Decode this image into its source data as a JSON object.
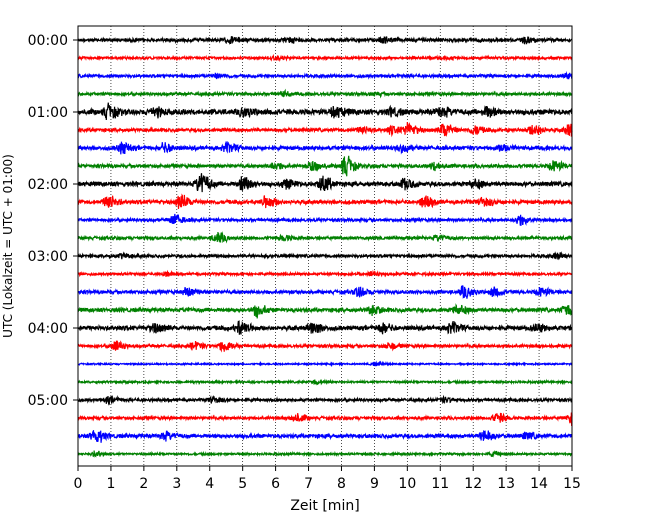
{
  "chart_data": {
    "type": "line",
    "title": "",
    "xlabel": "Zeit  [min]",
    "ylabel": "UTC (Lokalzeit = UTC + 01:00)",
    "xlim": [
      0,
      15
    ],
    "x_ticks": [
      "0",
      "1",
      "2",
      "3",
      "4",
      "5",
      "6",
      "7",
      "8",
      "9",
      "10",
      "11",
      "12",
      "13",
      "14",
      "15"
    ],
    "y_ticks": [
      "00:00",
      "01:00",
      "02:00",
      "03:00",
      "04:00",
      "05:00"
    ],
    "trace_interval_minutes": 15,
    "trace_colors": [
      "#000000",
      "#ff0000",
      "#0000ff",
      "#008000"
    ],
    "grid": "vertical-dotted",
    "series": [
      {
        "start": "00:00",
        "color": "#000000",
        "level": 0.35,
        "bursts": [
          [
            4.6,
            0.5
          ],
          [
            6.4,
            0.4
          ],
          [
            9.2,
            0.5
          ],
          [
            13.6,
            0.5
          ]
        ]
      },
      {
        "start": "00:15",
        "color": "#ff0000",
        "level": 0.25,
        "bursts": [
          [
            6.0,
            0.3
          ],
          [
            11.0,
            0.3
          ]
        ]
      },
      {
        "start": "00:30",
        "color": "#0000ff",
        "level": 0.3,
        "bursts": [
          [
            4.2,
            0.4
          ],
          [
            14.8,
            0.4
          ]
        ]
      },
      {
        "start": "00:45",
        "color": "#008000",
        "level": 0.3,
        "bursts": [
          [
            6.2,
            0.4
          ],
          [
            9.0,
            0.3
          ]
        ]
      },
      {
        "start": "01:00",
        "color": "#000000",
        "level": 0.55,
        "bursts": [
          [
            0.9,
            1.2
          ],
          [
            2.3,
            0.8
          ],
          [
            5.0,
            0.8
          ],
          [
            7.8,
            0.9
          ],
          [
            9.5,
            0.6
          ],
          [
            11.0,
            0.8
          ],
          [
            12.4,
            0.8
          ]
        ]
      },
      {
        "start": "01:15",
        "color": "#ff0000",
        "level": 0.35,
        "bursts": [
          [
            8.6,
            0.6
          ],
          [
            9.5,
            0.7
          ],
          [
            10.0,
            1.3
          ],
          [
            11.1,
            1.4
          ],
          [
            12.0,
            0.8
          ],
          [
            13.8,
            1.1
          ],
          [
            14.9,
            1.2
          ]
        ]
      },
      {
        "start": "01:30",
        "color": "#0000ff",
        "level": 0.4,
        "bursts": [
          [
            1.3,
            1.0
          ],
          [
            2.6,
            0.8
          ],
          [
            4.5,
            0.8
          ],
          [
            9.8,
            0.6
          ],
          [
            12.8,
            0.7
          ]
        ]
      },
      {
        "start": "01:45",
        "color": "#008000",
        "level": 0.35,
        "bursts": [
          [
            5.9,
            0.6
          ],
          [
            7.1,
            0.9
          ],
          [
            8.1,
            1.8
          ],
          [
            10.8,
            0.7
          ],
          [
            14.4,
            1.0
          ]
        ]
      },
      {
        "start": "02:00",
        "color": "#000000",
        "level": 0.45,
        "bursts": [
          [
            3.7,
            2.0
          ],
          [
            5.0,
            1.5
          ],
          [
            6.3,
            0.8
          ],
          [
            7.4,
            1.4
          ],
          [
            9.9,
            0.9
          ],
          [
            12.0,
            0.8
          ]
        ]
      },
      {
        "start": "02:15",
        "color": "#ff0000",
        "level": 0.4,
        "bursts": [
          [
            0.9,
            1.3
          ],
          [
            3.1,
            1.2
          ],
          [
            5.7,
            1.0
          ],
          [
            10.5,
            1.0
          ],
          [
            12.3,
            0.8
          ]
        ]
      },
      {
        "start": "02:30",
        "color": "#0000ff",
        "level": 0.3,
        "bursts": [
          [
            2.9,
            1.0
          ],
          [
            13.4,
            0.9
          ]
        ]
      },
      {
        "start": "02:45",
        "color": "#008000",
        "level": 0.3,
        "bursts": [
          [
            4.2,
            1.0
          ],
          [
            6.2,
            0.5
          ],
          [
            10.9,
            0.5
          ]
        ]
      },
      {
        "start": "03:00",
        "color": "#000000",
        "level": 0.3,
        "bursts": [
          [
            1.3,
            0.4
          ],
          [
            14.5,
            0.5
          ]
        ]
      },
      {
        "start": "03:15",
        "color": "#ff0000",
        "level": 0.25,
        "bursts": [
          [
            2.6,
            0.4
          ],
          [
            8.9,
            0.3
          ]
        ]
      },
      {
        "start": "03:30",
        "color": "#0000ff",
        "level": 0.35,
        "bursts": [
          [
            3.3,
            0.8
          ],
          [
            8.5,
            0.9
          ],
          [
            11.7,
            1.1
          ],
          [
            12.6,
            0.8
          ],
          [
            14.0,
            0.8
          ]
        ]
      },
      {
        "start": "03:45",
        "color": "#008000",
        "level": 0.4,
        "bursts": [
          [
            5.4,
            1.2
          ],
          [
            8.9,
            0.7
          ],
          [
            11.5,
            0.9
          ],
          [
            14.8,
            0.9
          ]
        ]
      },
      {
        "start": "04:00",
        "color": "#000000",
        "level": 0.45,
        "bursts": [
          [
            2.3,
            0.8
          ],
          [
            4.9,
            1.2
          ],
          [
            7.1,
            1.1
          ],
          [
            9.2,
            0.8
          ],
          [
            11.3,
            0.9
          ],
          [
            13.9,
            0.6
          ]
        ]
      },
      {
        "start": "04:15",
        "color": "#ff0000",
        "level": 0.3,
        "bursts": [
          [
            1.1,
            0.8
          ],
          [
            3.5,
            0.7
          ],
          [
            4.4,
            1.2
          ],
          [
            9.4,
            0.6
          ]
        ]
      },
      {
        "start": "04:30",
        "color": "#0000ff",
        "level": 0.15,
        "bursts": [
          [
            9.0,
            0.3
          ]
        ]
      },
      {
        "start": "04:45",
        "color": "#008000",
        "level": 0.2,
        "bursts": [
          [
            7.2,
            0.4
          ]
        ]
      },
      {
        "start": "05:00",
        "color": "#000000",
        "level": 0.3,
        "bursts": [
          [
            0.9,
            0.6
          ],
          [
            4.1,
            0.5
          ],
          [
            11.1,
            0.4
          ]
        ]
      },
      {
        "start": "05:15",
        "color": "#ff0000",
        "level": 0.3,
        "bursts": [
          [
            6.6,
            0.8
          ],
          [
            12.7,
            0.9
          ],
          [
            15.0,
            1.2
          ]
        ]
      },
      {
        "start": "05:30",
        "color": "#0000ff",
        "level": 0.4,
        "bursts": [
          [
            0.5,
            1.3
          ],
          [
            2.6,
            0.7
          ],
          [
            12.3,
            1.0
          ],
          [
            13.6,
            0.6
          ]
        ]
      },
      {
        "start": "05:45",
        "color": "#008000",
        "level": 0.2,
        "bursts": [
          [
            0.5,
            0.5
          ],
          [
            12.6,
            0.4
          ]
        ]
      }
    ]
  }
}
